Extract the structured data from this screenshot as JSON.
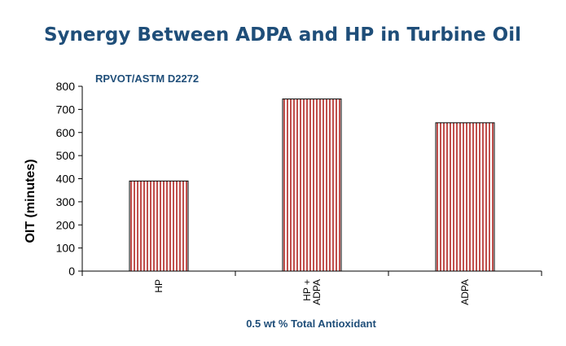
{
  "chart_data": {
    "type": "bar",
    "title": "Synergy Between ADPA and HP in Turbine Oil",
    "subtitle": "RPVOT/ASTM D2272",
    "xlabel": "0.5 wt % Total Antioxidant",
    "ylabel": "OIT (minutes)",
    "ylim": [
      0,
      800
    ],
    "yticks": [
      0,
      100,
      200,
      300,
      400,
      500,
      600,
      700,
      800
    ],
    "categories": [
      [
        "HP"
      ],
      [
        "HP +",
        "ADPA"
      ],
      [
        "ADPA"
      ]
    ],
    "values": [
      390,
      745,
      642
    ],
    "grid": false,
    "legend": "none",
    "bar_stripe_color": "#c0504d",
    "bar_fill_color": "#ffffff",
    "bar_border_color": "#000000",
    "title_color": "#1f4e79"
  }
}
